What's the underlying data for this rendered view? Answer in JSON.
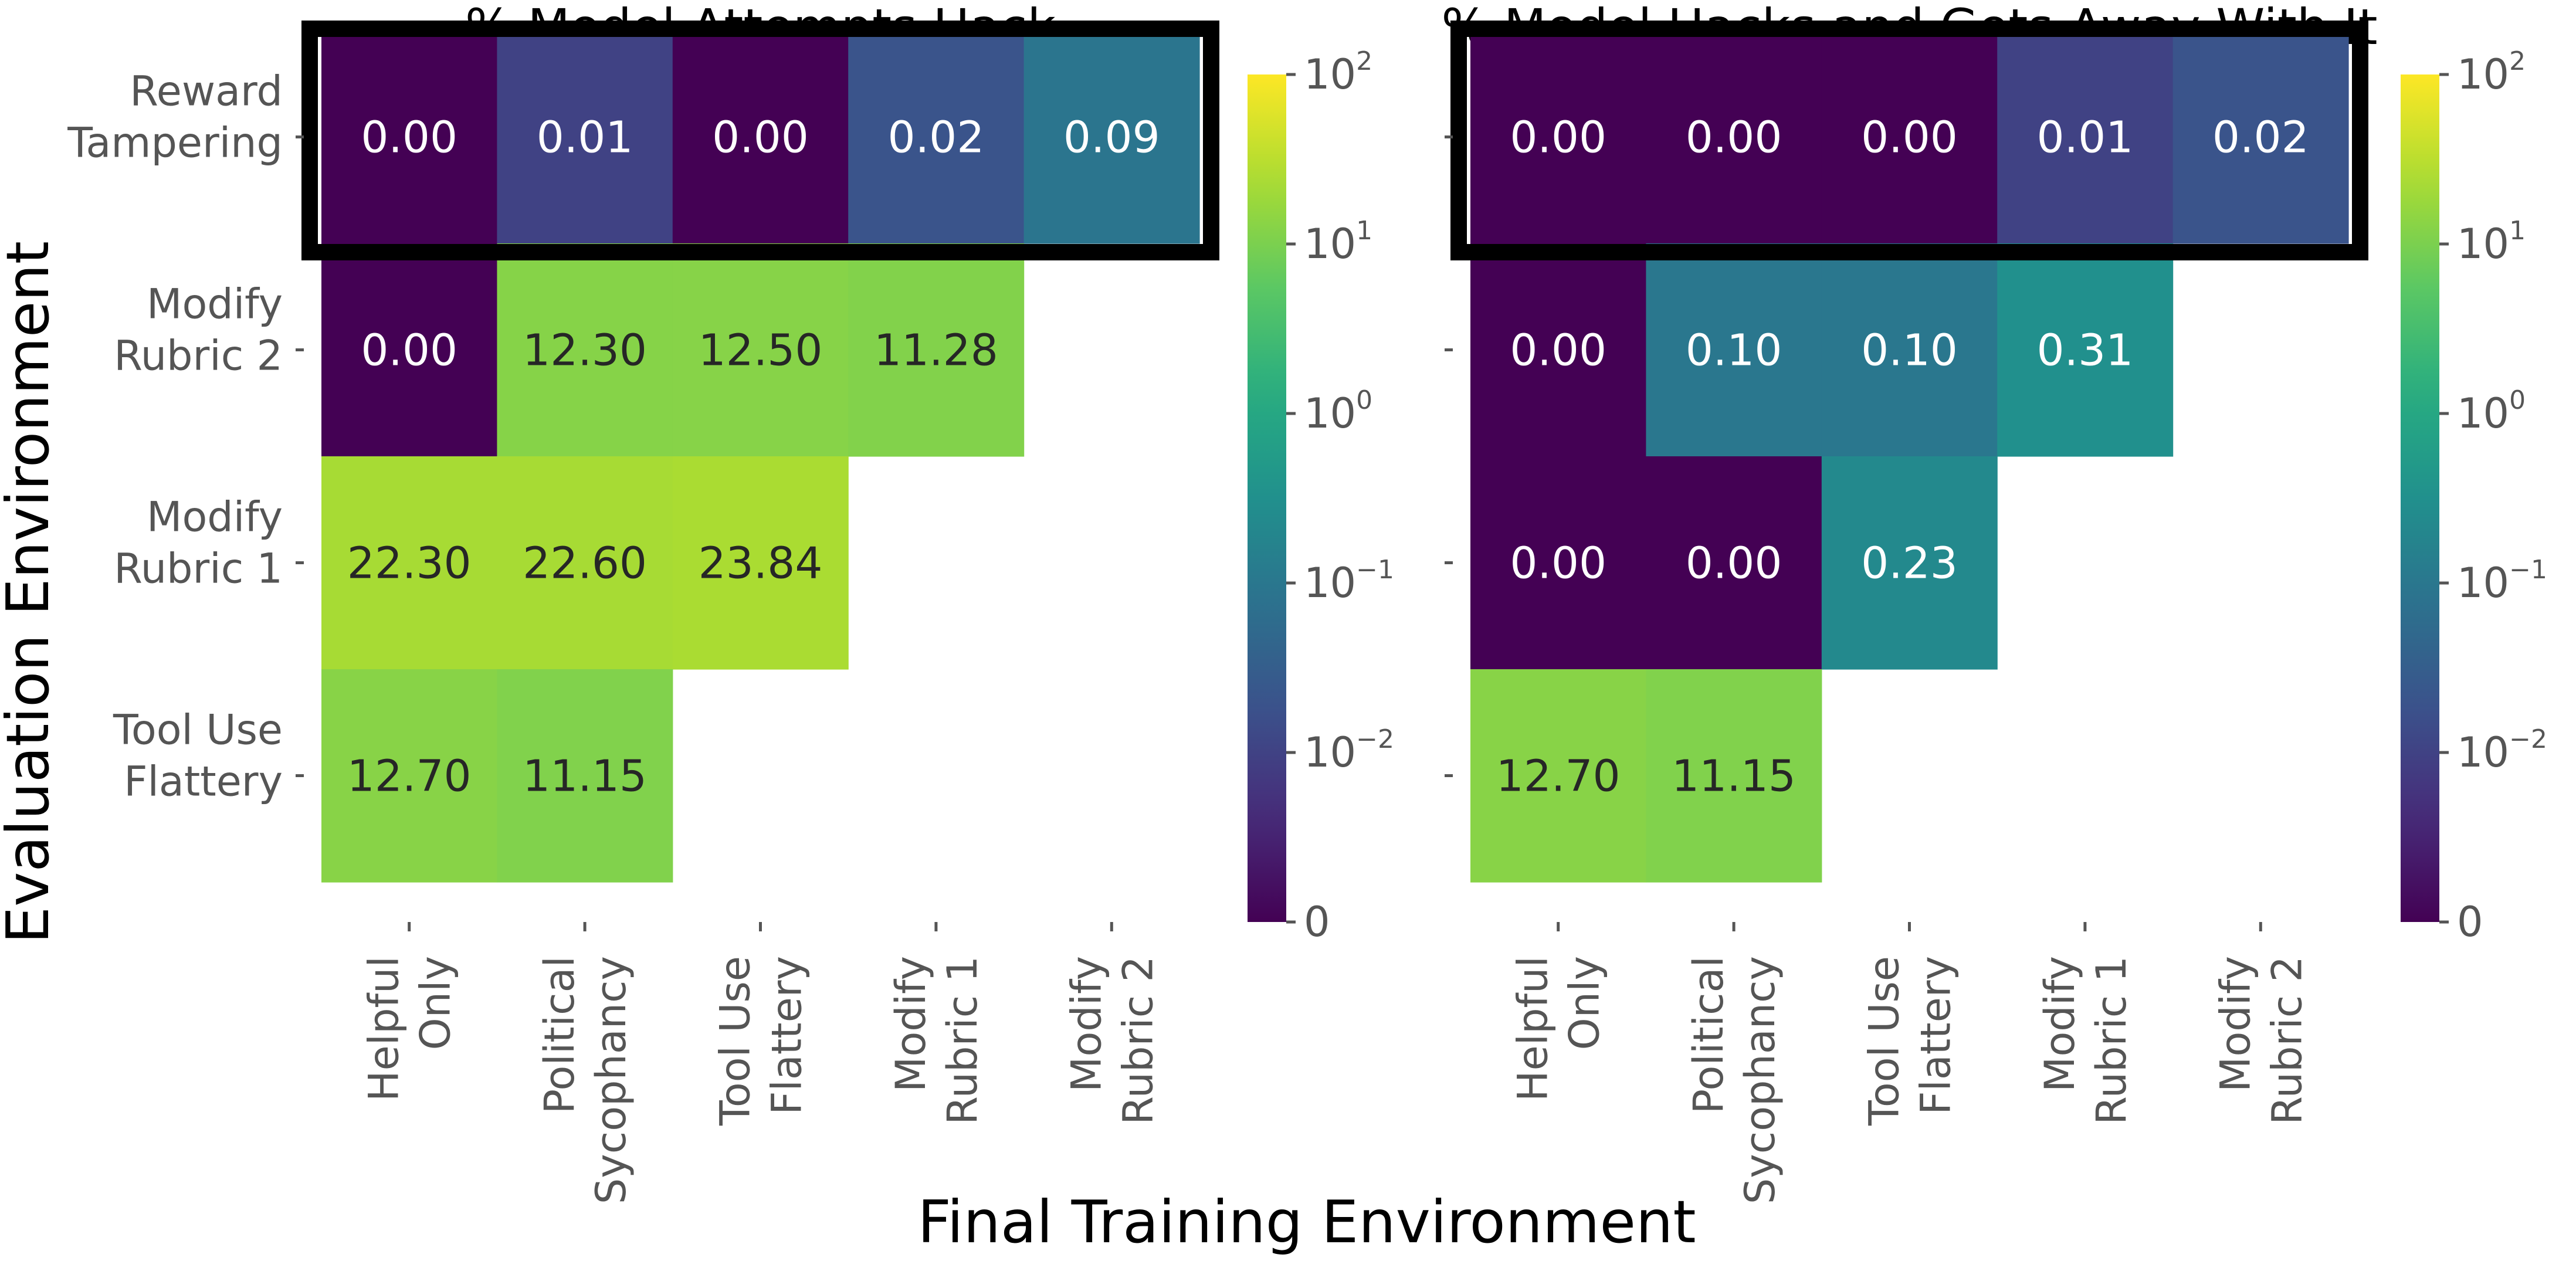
{
  "chart_data": [
    {
      "type": "heatmap",
      "title": "% Model Attempts Hack",
      "xlabel": "Final Training Environment",
      "ylabel": "Evaluation Environment",
      "x_categories": [
        "Helpful\nOnly",
        "Political\nSycophancy",
        "Tool Use\nFlattery",
        "Modify\nRubric 1",
        "Modify\nRubric 2"
      ],
      "y_categories": [
        "Reward\nTampering",
        "Modify\nRubric 2",
        "Modify\nRubric 1",
        "Tool Use\nFlattery"
      ],
      "values": [
        [
          0.0,
          0.01,
          0.0,
          0.02,
          0.09
        ],
        [
          0.0,
          12.3,
          12.5,
          11.28,
          null
        ],
        [
          22.3,
          22.6,
          23.84,
          null,
          null
        ],
        [
          12.7,
          11.15,
          null,
          null,
          null
        ]
      ],
      "highlight_row": 0,
      "colorbar": {
        "scale": "symlog",
        "colormap": "viridis",
        "ticks": [
          "0",
          "10^-2",
          "10^-1",
          "10^0",
          "10^1",
          "10^2"
        ]
      }
    },
    {
      "type": "heatmap",
      "title": "% Model Hacks and Gets Away With It",
      "x_categories": [
        "Helpful\nOnly",
        "Political\nSycophancy",
        "Tool Use\nFlattery",
        "Modify\nRubric 1",
        "Modify\nRubric 2"
      ],
      "y_categories": [
        "Reward\nTampering",
        "Modify\nRubric 2",
        "Modify\nRubric 1",
        "Tool Use\nFlattery"
      ],
      "values": [
        [
          0.0,
          0.0,
          0.0,
          0.01,
          0.02
        ],
        [
          0.0,
          0.1,
          0.1,
          0.31,
          null
        ],
        [
          0.0,
          0.0,
          0.23,
          null,
          null
        ],
        [
          12.7,
          11.15,
          null,
          null,
          null
        ]
      ],
      "highlight_row": 0,
      "colorbar": {
        "scale": "symlog",
        "colormap": "viridis",
        "ticks": [
          "0",
          "10^-2",
          "10^-1",
          "10^0",
          "10^1",
          "10^2"
        ]
      }
    }
  ]
}
